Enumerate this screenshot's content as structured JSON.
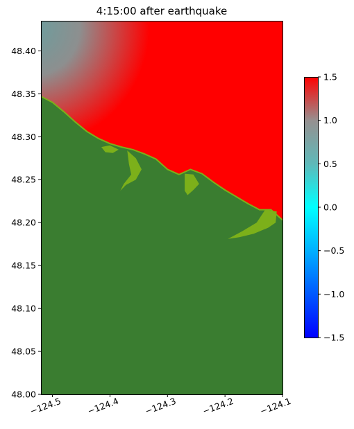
{
  "chart_data": {
    "type": "heatmap",
    "title": "4:15:00 after earthquake",
    "xlabel": "",
    "ylabel": "",
    "xlim": [
      -124.52,
      -124.1
    ],
    "ylim": [
      48.0,
      48.435
    ],
    "x_ticks": [
      -124.5,
      -124.4,
      -124.3,
      -124.2,
      -124.1
    ],
    "x_tick_labels": [
      "−124.5",
      "−124.4",
      "−124.3",
      "−124.2",
      "−124.1"
    ],
    "y_ticks": [
      48.0,
      48.05,
      48.1,
      48.15,
      48.2,
      48.25,
      48.3,
      48.35,
      48.4
    ],
    "y_tick_labels": [
      "48.00",
      "48.05",
      "48.10",
      "48.15",
      "48.20",
      "48.25",
      "48.30",
      "48.35",
      "48.40"
    ],
    "colorbar": {
      "range": [
        -1.5,
        1.5
      ],
      "ticks": [
        -1.5,
        -1.0,
        -0.5,
        0.0,
        0.5,
        1.0,
        1.5
      ],
      "tick_labels": [
        "−1.5",
        "−1.0",
        "−0.5",
        "0.0",
        "0.5",
        "1.0",
        "1.5"
      ],
      "colormap": [
        {
          "v": -1.5,
          "color": "#0000ff"
        },
        {
          "v": -0.5,
          "color": "#00b0ff"
        },
        {
          "v": 0.0,
          "color": "#00ffff"
        },
        {
          "v": 0.5,
          "color": "#5fb9b9"
        },
        {
          "v": 1.0,
          "color": "#969090"
        },
        {
          "v": 1.5,
          "color": "#ff0000"
        }
      ]
    },
    "land_color": "#3a7d30",
    "wet_land_color": "#7cb01a",
    "coastline": [
      [
        -124.52,
        48.347
      ],
      [
        -124.5,
        48.34
      ],
      [
        -124.48,
        48.329
      ],
      [
        -124.46,
        48.317
      ],
      [
        -124.44,
        48.306
      ],
      [
        -124.42,
        48.298
      ],
      [
        -124.4,
        48.292
      ],
      [
        -124.38,
        48.288
      ],
      [
        -124.36,
        48.285
      ],
      [
        -124.34,
        48.28
      ],
      [
        -124.32,
        48.274
      ],
      [
        -124.3,
        48.262
      ],
      [
        -124.28,
        48.256
      ],
      [
        -124.26,
        48.262
      ],
      [
        -124.24,
        48.257
      ],
      [
        -124.22,
        48.247
      ],
      [
        -124.2,
        48.238
      ],
      [
        -124.18,
        48.23
      ],
      [
        -124.16,
        48.222
      ],
      [
        -124.14,
        48.215
      ],
      [
        -124.12,
        48.215
      ],
      [
        -124.1,
        48.203
      ]
    ],
    "inundation_regions": [
      [
        [
          -124.415,
          48.288
        ],
        [
          -124.4,
          48.29
        ],
        [
          -124.385,
          48.285
        ],
        [
          -124.395,
          48.281
        ],
        [
          -124.408,
          48.282
        ]
      ],
      [
        [
          -124.37,
          48.284
        ],
        [
          -124.355,
          48.275
        ],
        [
          -124.345,
          48.262
        ],
        [
          -124.355,
          48.25
        ],
        [
          -124.372,
          48.244
        ],
        [
          -124.382,
          48.237
        ],
        [
          -124.376,
          48.245
        ],
        [
          -124.363,
          48.256
        ],
        [
          -124.367,
          48.268
        ]
      ],
      [
        [
          -124.27,
          48.257
        ],
        [
          -124.255,
          48.256
        ],
        [
          -124.245,
          48.245
        ],
        [
          -124.255,
          48.238
        ],
        [
          -124.265,
          48.232
        ],
        [
          -124.258,
          48.225
        ],
        [
          -124.27,
          48.237
        ]
      ],
      [
        [
          -124.13,
          48.215
        ],
        [
          -124.11,
          48.213
        ],
        [
          -124.112,
          48.2
        ],
        [
          -124.125,
          48.194
        ],
        [
          -124.15,
          48.187
        ],
        [
          -124.175,
          48.183
        ],
        [
          -124.195,
          48.181
        ],
        [
          -124.17,
          48.19
        ],
        [
          -124.145,
          48.2
        ]
      ]
    ]
  }
}
